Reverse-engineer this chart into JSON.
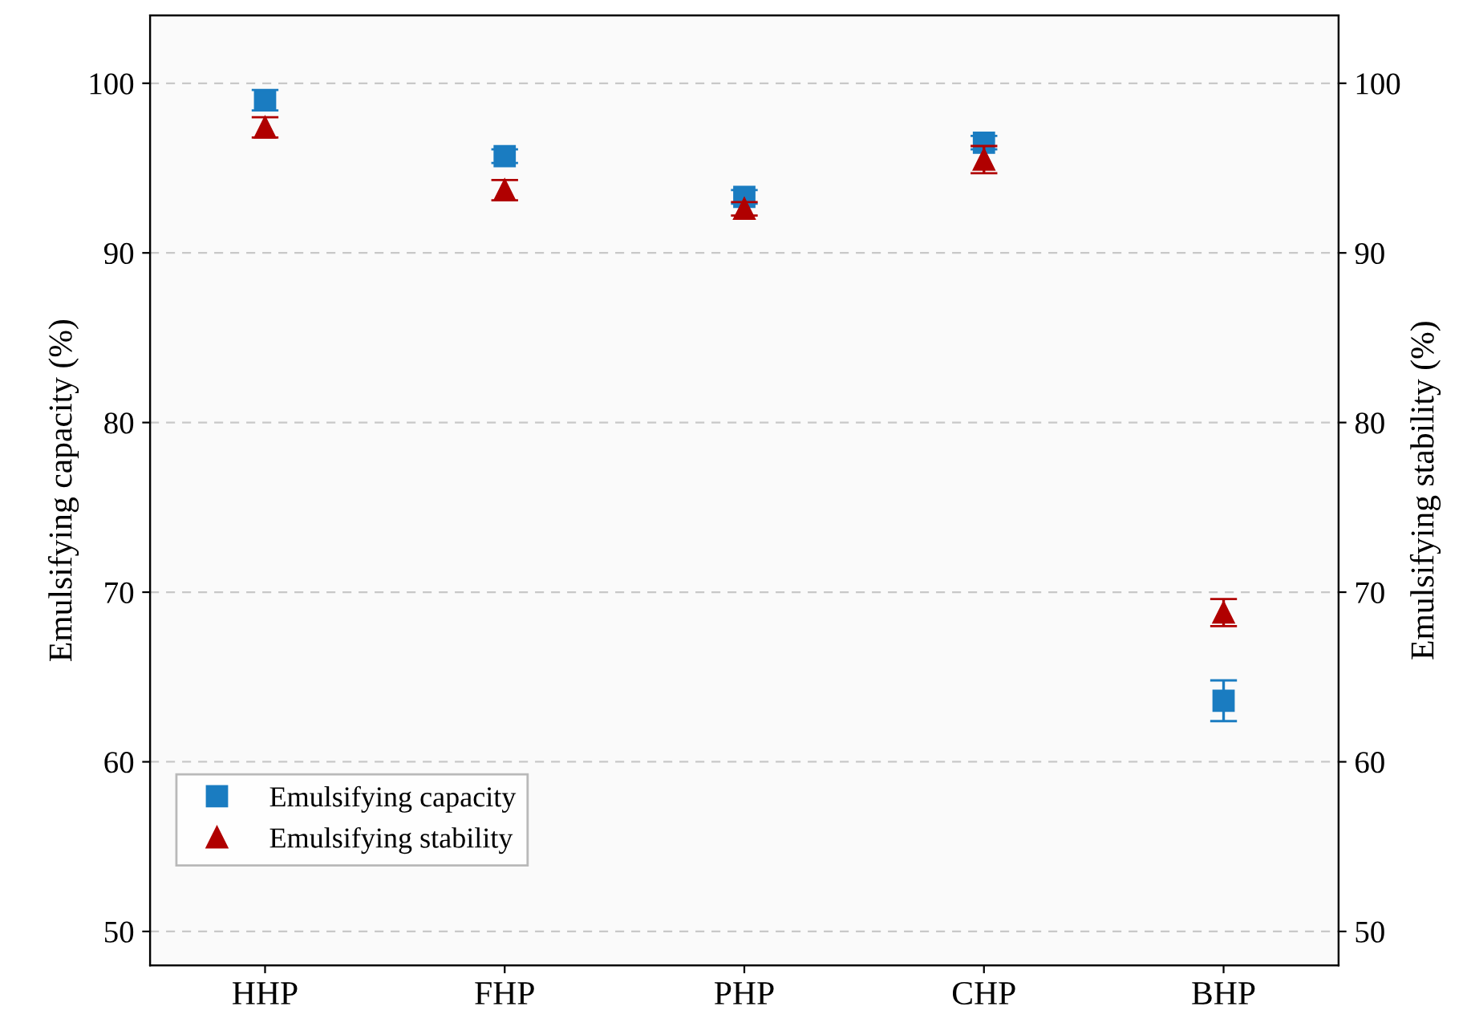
{
  "chart_data": {
    "type": "scatter",
    "categories": [
      "HHP",
      "FHP",
      "PHP",
      "CHP",
      "BHP"
    ],
    "ylabel": "Emulsifying capacity (%)",
    "y2label": "Emulsifying stability (%)",
    "ylim": [
      48,
      104
    ],
    "yticks": [
      50,
      60,
      70,
      80,
      90,
      100
    ],
    "y2lim": [
      48,
      104
    ],
    "y2ticks": [
      50,
      60,
      70,
      80,
      90,
      100
    ],
    "grid": "y",
    "legend": "bottom left",
    "series": [
      {
        "name": "Emulsifying capacity",
        "color": "#1a7cc1",
        "marker": "square",
        "values": [
          99.0,
          95.7,
          93.3,
          96.5,
          63.6
        ],
        "errors": [
          0.6,
          0.4,
          0.4,
          0.4,
          1.2
        ]
      },
      {
        "name": "Emulsifying stability",
        "color": "#b00000",
        "marker": "triangle",
        "axis": "y2",
        "values": [
          97.4,
          93.7,
          92.6,
          95.5,
          68.8
        ],
        "errors": [
          0.6,
          0.6,
          0.4,
          0.8,
          0.8
        ]
      }
    ]
  }
}
